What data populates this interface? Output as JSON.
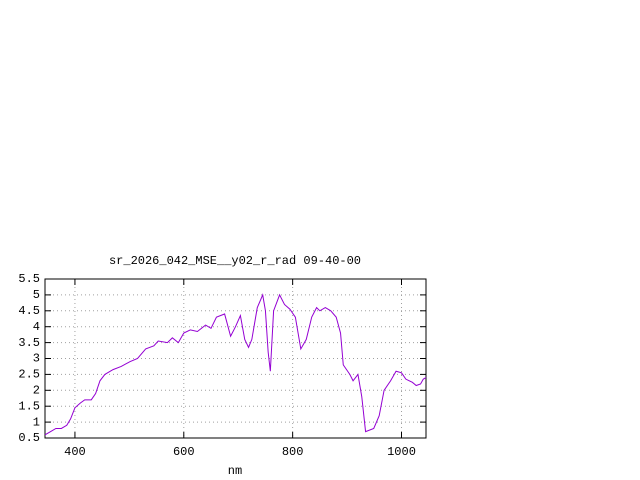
{
  "chart_data": {
    "type": "line",
    "title": "sr_2026_042_MSE__y02_r_rad 09-40-00",
    "x_label": "nm",
    "xlim": [
      345,
      1045
    ],
    "ylim": [
      0.5,
      5.5
    ],
    "xticks": [
      400,
      600,
      800,
      1000
    ],
    "yticks": [
      0.5,
      1,
      1.5,
      2,
      2.5,
      3,
      3.5,
      4,
      4.5,
      5,
      5.5
    ],
    "grid": true,
    "series": [
      {
        "color": "#9400d3",
        "x": [
          345,
          355,
          365,
          375,
          385,
          392,
          400,
          410,
          418,
          430,
          438,
          446,
          455,
          470,
          485,
          501,
          515,
          530,
          545,
          553,
          570,
          579,
          590,
          600,
          612,
          625,
          640,
          650,
          660,
          675,
          686,
          695,
          704,
          712,
          719,
          725,
          735,
          745,
          750,
          755,
          759,
          765,
          776,
          785,
          795,
          805,
          815,
          825,
          835,
          844,
          850,
          860,
          870,
          880,
          888,
          893,
          905,
          911,
          920,
          927,
          934,
          949,
          959,
          968,
          980,
          990,
          1000,
          1008,
          1020,
          1027,
          1035,
          1040,
          1045
        ],
        "values": [
          0.6,
          0.7,
          0.8,
          0.8,
          0.9,
          1.1,
          1.45,
          1.6,
          1.7,
          1.7,
          1.9,
          2.3,
          2.5,
          2.65,
          2.75,
          2.9,
          3.0,
          3.3,
          3.4,
          3.55,
          3.5,
          3.65,
          3.5,
          3.8,
          3.9,
          3.85,
          4.05,
          3.95,
          4.3,
          4.4,
          3.7,
          4.0,
          4.35,
          3.6,
          3.35,
          3.6,
          4.6,
          5.0,
          4.5,
          3.2,
          2.6,
          4.5,
          5.0,
          4.7,
          4.55,
          4.3,
          3.3,
          3.6,
          4.3,
          4.6,
          4.5,
          4.6,
          4.5,
          4.3,
          3.8,
          2.8,
          2.5,
          2.3,
          2.5,
          1.8,
          0.7,
          0.8,
          1.2,
          2.0,
          2.3,
          2.6,
          2.55,
          2.35,
          2.25,
          2.15,
          2.2,
          2.35,
          2.4
        ]
      }
    ]
  }
}
